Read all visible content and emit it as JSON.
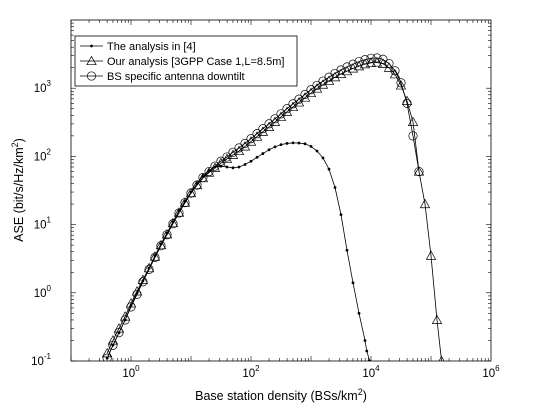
{
  "chart_data": {
    "type": "line",
    "xscale": "log",
    "yscale": "log",
    "xlim": [
      0.1,
      1000000
    ],
    "ylim": [
      0.1,
      10000
    ],
    "xlabel": "Base station density (BSs/km",
    "xlabel_sup": "2",
    "xlabel_end": ")",
    "ylabel": "ASE (bit/s/Hz/km",
    "ylabel_sup": "2",
    "ylabel_end": ")",
    "x_ticks": [
      {
        "base": "10",
        "exp": "0",
        "value": 1
      },
      {
        "base": "10",
        "exp": "2",
        "value": 100
      },
      {
        "base": "10",
        "exp": "4",
        "value": 10000
      },
      {
        "base": "10",
        "exp": "6",
        "value": 1000000
      }
    ],
    "y_ticks": [
      {
        "base": "10",
        "exp": "-1",
        "value": 0.1
      },
      {
        "base": "10",
        "exp": "0",
        "value": 1
      },
      {
        "base": "10",
        "exp": "1",
        "value": 10
      },
      {
        "base": "10",
        "exp": "2",
        "value": 100
      },
      {
        "base": "10",
        "exp": "3",
        "value": 1000
      }
    ],
    "legend_position": "top-left",
    "grid": false,
    "series": [
      {
        "name": "The analysis in [4]",
        "marker": "dot",
        "x": [
          0.4,
          0.5,
          0.63,
          0.8,
          1,
          1.26,
          1.58,
          2,
          2.51,
          3.16,
          3.98,
          5.01,
          6.31,
          7.94,
          10,
          12.6,
          15.8,
          20,
          25.1,
          31.6,
          39.8,
          50.1,
          63.1,
          79.4,
          100,
          126,
          158,
          200,
          251,
          316,
          398,
          501,
          631,
          794,
          1000,
          1259,
          1585,
          1995,
          2512,
          3162,
          3981,
          5012,
          6310,
          7943,
          8500,
          9500
        ],
        "y": [
          0.11,
          0.17,
          0.26,
          0.4,
          0.65,
          1.0,
          1.5,
          2.3,
          3.5,
          5.2,
          7.5,
          11,
          16,
          22,
          30,
          40,
          52,
          62,
          70,
          72,
          70,
          68,
          70,
          76,
          85,
          97,
          110,
          125,
          138,
          149,
          155,
          158,
          157,
          153,
          140,
          120,
          95,
          65,
          35,
          14,
          4.2,
          1.4,
          0.5,
          0.2,
          0.14,
          0.1
        ]
      },
      {
        "name": "Our analysis [3GPP Case 1,L=8.5m]",
        "marker": "triangle",
        "x": [
          0.4,
          0.5,
          0.63,
          0.8,
          1,
          1.26,
          1.58,
          2,
          2.51,
          3.16,
          3.98,
          5.01,
          6.31,
          7.94,
          10,
          12.6,
          15.8,
          20,
          25.1,
          31.6,
          39.8,
          50.1,
          63.1,
          79.4,
          100,
          126,
          158,
          200,
          251,
          316,
          398,
          501,
          631,
          794,
          1000,
          1259,
          1585,
          1995,
          2512,
          3162,
          3981,
          5012,
          6310,
          7943,
          10000,
          12589,
          15849,
          19953,
          25119,
          31623,
          39811,
          50119,
          63096,
          79433,
          100000,
          125893,
          150000
        ],
        "y": [
          0.13,
          0.2,
          0.3,
          0.45,
          0.7,
          1.05,
          1.55,
          2.3,
          3.4,
          5.0,
          7.2,
          10.5,
          15,
          21,
          29,
          38,
          48,
          58,
          68,
          80,
          92,
          105,
          120,
          140,
          165,
          195,
          230,
          270,
          320,
          380,
          450,
          530,
          620,
          730,
          850,
          990,
          1130,
          1280,
          1450,
          1620,
          1780,
          1950,
          2100,
          2250,
          2350,
          2380,
          2280,
          2000,
          1600,
          1100,
          650,
          320,
          60,
          20,
          3.5,
          0.4,
          0.1
        ]
      },
      {
        "name": "BS specific antenna downtilt",
        "marker": "circle",
        "x": [
          0.4,
          0.5,
          0.63,
          0.8,
          1,
          1.26,
          1.58,
          2,
          2.51,
          3.16,
          3.98,
          5.01,
          6.31,
          7.94,
          10,
          12.6,
          15.8,
          20,
          25.1,
          31.6,
          39.8,
          50.1,
          63.1,
          79.4,
          100,
          126,
          158,
          200,
          251,
          316,
          398,
          501,
          631,
          794,
          1000,
          1259,
          1585,
          1995,
          2512,
          3162,
          3981,
          5012,
          6310,
          7943,
          10000,
          12589,
          15849,
          19953,
          25119,
          31623,
          39811,
          50119,
          63096
        ],
        "y": [
          0.11,
          0.17,
          0.26,
          0.4,
          0.62,
          0.95,
          1.45,
          2.2,
          3.3,
          4.9,
          7.1,
          10.3,
          14.8,
          21,
          29,
          38,
          49,
          60,
          72,
          85,
          98,
          115,
          133,
          155,
          182,
          215,
          255,
          300,
          355,
          420,
          500,
          590,
          690,
          810,
          950,
          1100,
          1270,
          1450,
          1650,
          1850,
          2050,
          2250,
          2450,
          2620,
          2750,
          2780,
          2650,
          2300,
          1800,
          1200,
          600,
          200,
          60
        ]
      }
    ]
  }
}
